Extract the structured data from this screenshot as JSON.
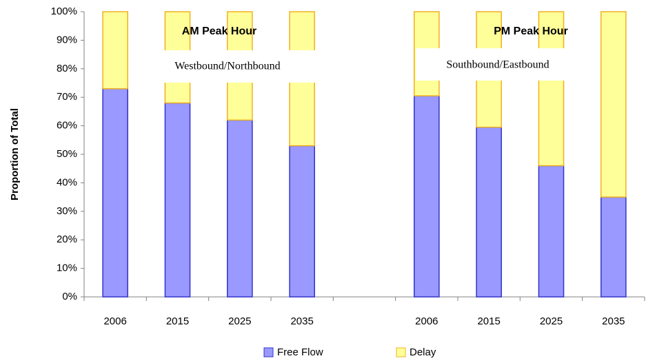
{
  "chart_data": {
    "type": "stacked_bar",
    "y_label": "Proportion of Total",
    "annotations": [
      "AM Peak Hour",
      "Westbound/Northbound",
      "PM Peak Hour",
      "Southbound/Eastbound"
    ],
    "categories": [
      "2006",
      "2015",
      "2025",
      "2035",
      null,
      "2006",
      "2015",
      "2025",
      "2035"
    ],
    "series": [
      {
        "name": "Free Flow",
        "color": "#9999ff",
        "edgecolor": "#3333cc",
        "values": [
          73,
          68,
          62,
          53,
          null,
          70.5,
          59.5,
          46,
          35
        ]
      },
      {
        "name": "Delay",
        "color": "#ffff99",
        "edgecolor": "#f0b020",
        "values": [
          27,
          32,
          38,
          47,
          null,
          29.5,
          40.5,
          54,
          65
        ]
      }
    ],
    "ylim": [
      0,
      100
    ],
    "yticks": [
      {
        "value": 0,
        "label": "0%"
      },
      {
        "value": 10,
        "label": "10%"
      },
      {
        "value": 20,
        "label": "20%"
      },
      {
        "value": 30,
        "label": "30%"
      },
      {
        "value": 40,
        "label": "40%"
      },
      {
        "value": 50,
        "label": "50%"
      },
      {
        "value": 60,
        "label": "60%"
      },
      {
        "value": 70,
        "label": "70%"
      },
      {
        "value": 80,
        "label": "80%"
      },
      {
        "value": 90,
        "label": "90%"
      },
      {
        "value": 100,
        "label": "100%"
      }
    ],
    "grid": false,
    "legend": "bottom"
  }
}
